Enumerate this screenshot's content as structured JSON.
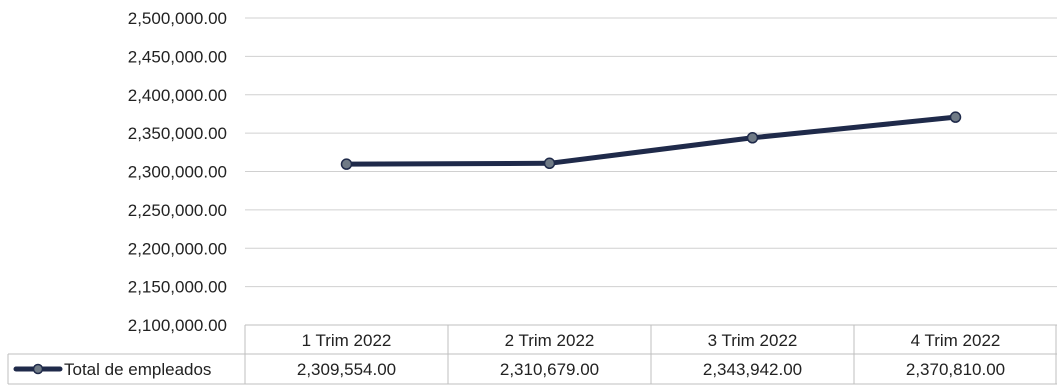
{
  "chart_data": {
    "type": "line",
    "categories": [
      "1 Trim 2022",
      "2 Trim 2022",
      "3 Trim 2022",
      "4 Trim 2022"
    ],
    "series": [
      {
        "name": "Total de empleados",
        "values": [
          2309554,
          2310679,
          2343942,
          2370810
        ],
        "value_labels": [
          "2,309,554.00",
          "2,310,679.00",
          "2,343,942.00",
          "2,370,810.00"
        ],
        "color": "#1f2a4a",
        "marker_color": "#6f7a86"
      }
    ],
    "ylim": [
      2100000,
      2500000
    ],
    "yticks": [
      2100000,
      2150000,
      2200000,
      2250000,
      2300000,
      2350000,
      2400000,
      2450000,
      2500000
    ],
    "ytick_labels": [
      "2,100,000.00",
      "2,150,000.00",
      "2,200,000.00",
      "2,250,000.00",
      "2,300,000.00",
      "2,350,000.00",
      "2,400,000.00",
      "2,450,000.00",
      "2,500,000.00"
    ],
    "grid": true,
    "legend": "data-table",
    "grid_color": "#d0d0d0"
  }
}
